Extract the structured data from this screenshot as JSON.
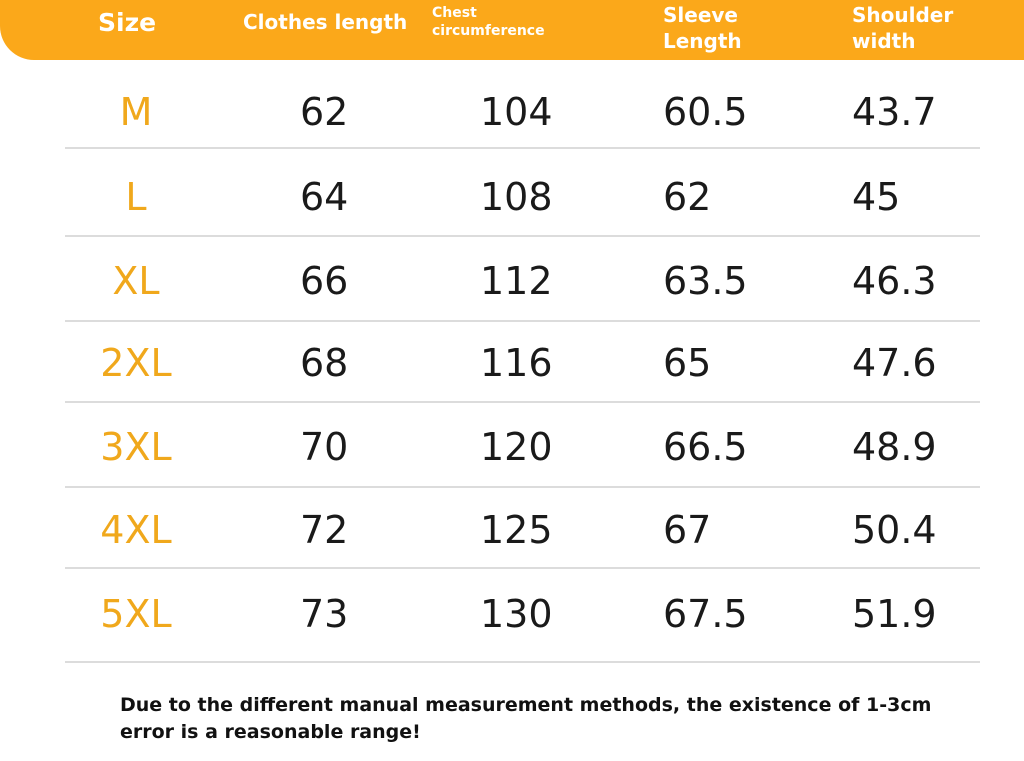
{
  "header": {
    "size": "Size",
    "clothes_length": "Clothes length",
    "chest": "Chest circumference",
    "sleeve": "Sleeve Length",
    "shoulder": "Shoulder width"
  },
  "rows": [
    {
      "size": "M",
      "length": "62",
      "chest": "104",
      "sleeve": "60.5",
      "shoulder": "43.7"
    },
    {
      "size": "L",
      "length": "64",
      "chest": "108",
      "sleeve": "62",
      "shoulder": "45"
    },
    {
      "size": "XL",
      "length": "66",
      "chest": "112",
      "sleeve": "63.5",
      "shoulder": "46.3"
    },
    {
      "size": "2XL",
      "length": "68",
      "chest": "116",
      "sleeve": "65",
      "shoulder": "47.6"
    },
    {
      "size": "3XL",
      "length": "70",
      "chest": "120",
      "sleeve": "66.5",
      "shoulder": "48.9"
    },
    {
      "size": "4XL",
      "length": "72",
      "chest": "125",
      "sleeve": "67",
      "shoulder": "50.4"
    },
    {
      "size": "5XL",
      "length": "73",
      "chest": "130",
      "sleeve": "67.5",
      "shoulder": "51.9"
    }
  ],
  "note": "Due to the different manual measurement methods, the existence of 1-3cm error is a reasonable range!",
  "colors": {
    "header_bar": "#fba81a",
    "size_text": "#f0a81c",
    "value_text": "#1a1a1a"
  }
}
